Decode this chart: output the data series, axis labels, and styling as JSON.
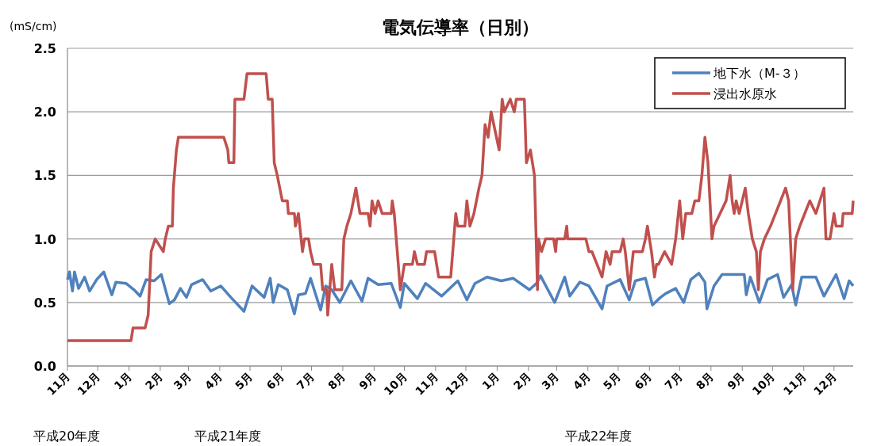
{
  "chart_data": {
    "type": "line",
    "title": "電気伝導率（日別）",
    "ylabel": "(mS/cm)",
    "xlim": [
      "2008-11-01",
      "2010-12-20"
    ],
    "xticks": [
      {
        "value": "2008-11-01",
        "label": "11月"
      },
      {
        "value": "2008-12-01",
        "label": "12月"
      },
      {
        "value": "2009-01-01",
        "label": "1月"
      },
      {
        "value": "2009-02-01",
        "label": "2月"
      },
      {
        "value": "2009-03-01",
        "label": "3月"
      },
      {
        "value": "2009-04-01",
        "label": "4月"
      },
      {
        "value": "2009-05-01",
        "label": "5月"
      },
      {
        "value": "2009-06-01",
        "label": "6月"
      },
      {
        "value": "2009-07-01",
        "label": "7月"
      },
      {
        "value": "2009-08-01",
        "label": "8月"
      },
      {
        "value": "2009-09-01",
        "label": "9月"
      },
      {
        "value": "2009-10-01",
        "label": "10月"
      },
      {
        "value": "2009-11-01",
        "label": "11月"
      },
      {
        "value": "2009-12-01",
        "label": "12月"
      },
      {
        "value": "2010-01-01",
        "label": "1月"
      },
      {
        "value": "2010-02-01",
        "label": "2月"
      },
      {
        "value": "2010-03-01",
        "label": "3月"
      },
      {
        "value": "2010-04-01",
        "label": "4月"
      },
      {
        "value": "2010-05-01",
        "label": "5月"
      },
      {
        "value": "2010-06-01",
        "label": "6月"
      },
      {
        "value": "2010-07-01",
        "label": "7月"
      },
      {
        "value": "2010-08-01",
        "label": "8月"
      },
      {
        "value": "2010-09-01",
        "label": "9月"
      },
      {
        "value": "2010-10-01",
        "label": "10月"
      },
      {
        "value": "2010-11-01",
        "label": "11月"
      },
      {
        "value": "2010-12-01",
        "label": "12月"
      }
    ],
    "ylim": [
      0,
      2.5
    ],
    "yticks": [
      {
        "value": 0,
        "label": "0.0"
      },
      {
        "value": 0.5,
        "label": "0.5"
      },
      {
        "value": 1,
        "label": "1.0"
      },
      {
        "value": 1.5,
        "label": "1.5"
      },
      {
        "value": 2,
        "label": "2.0"
      },
      {
        "value": 2.5,
        "label": "2.5"
      }
    ],
    "grid": "y",
    "legend": "top right",
    "annotations": [
      "平成20年度",
      "平成21年度",
      "平成22年度"
    ],
    "series": [
      {
        "name": "地下水（M-３）",
        "color": "#4f81bd",
        "x": [
          "2008-11-01",
          "2008-11-03",
          "2008-11-06",
          "2008-11-08",
          "2008-11-12",
          "2008-11-18",
          "2008-11-23",
          "2008-11-30",
          "2008-12-07",
          "2008-12-15",
          "2008-12-19",
          "2008-12-29",
          "2009-01-06",
          "2009-01-12",
          "2009-01-18",
          "2009-01-26",
          "2009-02-02",
          "2009-02-10",
          "2009-02-15",
          "2009-02-21",
          "2009-02-27",
          "2009-03-04",
          "2009-03-15",
          "2009-03-23",
          "2009-04-02",
          "2009-04-12",
          "2009-04-25",
          "2009-05-03",
          "2009-05-15",
          "2009-05-21",
          "2009-05-24",
          "2009-05-29",
          "2009-06-07",
          "2009-06-14",
          "2009-06-18",
          "2009-06-25",
          "2009-06-30",
          "2009-07-10",
          "2009-07-15",
          "2009-07-21",
          "2009-07-29",
          "2009-08-09",
          "2009-08-20",
          "2009-08-26",
          "2009-09-05",
          "2009-09-18",
          "2009-09-27",
          "2009-10-01",
          "2009-10-14",
          "2009-10-22",
          "2009-11-07",
          "2009-11-23",
          "2009-12-02",
          "2009-12-10",
          "2009-12-22",
          "2010-01-05",
          "2010-01-17",
          "2010-02-02",
          "2010-02-09",
          "2010-02-13",
          "2010-02-27",
          "2010-03-09",
          "2010-03-14",
          "2010-03-24",
          "2010-04-02",
          "2010-04-15",
          "2010-04-20",
          "2010-05-03",
          "2010-05-12",
          "2010-05-18",
          "2010-05-28",
          "2010-06-04",
          "2010-06-12",
          "2010-06-17",
          "2010-06-27",
          "2010-07-05",
          "2010-07-12",
          "2010-07-20",
          "2010-07-26",
          "2010-07-28",
          "2010-08-04",
          "2010-08-12",
          "2010-09-03",
          "2010-09-05",
          "2010-09-09",
          "2010-09-18",
          "2010-09-26",
          "2010-10-06",
          "2010-10-12",
          "2010-10-20",
          "2010-10-24",
          "2010-10-30",
          "2010-11-13",
          "2010-11-21",
          "2010-12-03",
          "2010-12-11",
          "2010-12-16",
          "2010-12-20"
        ],
        "values": [
          0.68,
          0.74,
          0.59,
          0.74,
          0.61,
          0.7,
          0.59,
          0.68,
          0.74,
          0.56,
          0.66,
          0.65,
          0.6,
          0.55,
          0.68,
          0.67,
          0.72,
          0.49,
          0.52,
          0.61,
          0.54,
          0.64,
          0.68,
          0.59,
          0.63,
          0.54,
          0.43,
          0.63,
          0.54,
          0.69,
          0.5,
          0.64,
          0.6,
          0.41,
          0.56,
          0.57,
          0.69,
          0.44,
          0.63,
          0.6,
          0.5,
          0.67,
          0.51,
          0.69,
          0.64,
          0.65,
          0.46,
          0.65,
          0.53,
          0.65,
          0.55,
          0.67,
          0.52,
          0.65,
          0.7,
          0.67,
          0.69,
          0.6,
          0.65,
          0.71,
          0.5,
          0.7,
          0.55,
          0.66,
          0.63,
          0.45,
          0.63,
          0.68,
          0.52,
          0.67,
          0.69,
          0.48,
          0.54,
          0.57,
          0.61,
          0.5,
          0.68,
          0.73,
          0.66,
          0.45,
          0.63,
          0.72,
          0.72,
          0.56,
          0.7,
          0.5,
          0.68,
          0.72,
          0.54,
          0.64,
          0.48,
          0.7,
          0.7,
          0.55,
          0.72,
          0.53,
          0.67,
          0.63
        ]
      },
      {
        "name": "浸出水原水",
        "color": "#c0504d",
        "x": [
          "2008-11-01",
          "2009-01-03",
          "2009-01-05",
          "2009-01-17",
          "2009-01-20",
          "2009-01-23",
          "2009-01-27",
          "2009-02-04",
          "2009-02-06",
          "2009-02-09",
          "2009-02-13",
          "2009-02-14",
          "2009-02-17",
          "2009-02-19",
          "2009-04-05",
          "2009-04-09",
          "2009-04-10",
          "2009-04-15",
          "2009-04-16",
          "2009-04-25",
          "2009-04-28",
          "2009-05-17",
          "2009-05-19",
          "2009-05-23",
          "2009-05-25",
          "2009-05-28",
          "2009-06-02",
          "2009-06-07",
          "2009-06-08",
          "2009-06-14",
          "2009-06-15",
          "2009-06-18",
          "2009-06-22",
          "2009-06-24",
          "2009-06-28",
          "2009-06-30",
          "2009-07-03",
          "2009-07-10",
          "2009-07-12",
          "2009-07-16",
          "2009-07-17",
          "2009-07-21",
          "2009-07-24",
          "2009-07-31",
          "2009-08-02",
          "2009-08-05",
          "2009-08-09",
          "2009-08-14",
          "2009-08-18",
          "2009-08-26",
          "2009-08-28",
          "2009-08-30",
          "2009-09-02",
          "2009-09-05",
          "2009-09-09",
          "2009-09-18",
          "2009-09-19",
          "2009-09-21",
          "2009-09-27",
          "2009-10-01",
          "2009-10-09",
          "2009-10-11",
          "2009-10-14",
          "2009-10-21",
          "2009-10-23",
          "2009-10-31",
          "2009-11-04",
          "2009-11-16",
          "2009-11-19",
          "2009-11-21",
          "2009-11-23",
          "2009-11-30",
          "2009-12-02",
          "2009-12-05",
          "2009-12-09",
          "2009-12-14",
          "2009-12-17",
          "2009-12-20",
          "2009-12-23",
          "2009-12-26",
          "2010-01-03",
          "2010-01-06",
          "2010-01-08",
          "2010-01-14",
          "2010-01-18",
          "2010-01-20",
          "2010-01-28",
          "2010-01-30",
          "2010-02-03",
          "2010-02-07",
          "2010-02-10",
          "2010-02-11",
          "2010-02-14",
          "2010-02-18",
          "2010-02-26",
          "2010-02-28",
          "2010-03-01",
          "2010-03-09",
          "2010-03-11",
          "2010-03-12",
          "2010-03-30",
          "2010-04-02",
          "2010-04-05",
          "2010-04-10",
          "2010-04-15",
          "2010-04-19",
          "2010-04-23",
          "2010-04-25",
          "2010-05-03",
          "2010-05-06",
          "2010-05-08",
          "2010-05-12",
          "2010-05-16",
          "2010-05-25",
          "2010-05-28",
          "2010-05-30",
          "2010-06-03",
          "2010-06-06",
          "2010-06-08",
          "2010-06-10",
          "2010-06-16",
          "2010-06-23",
          "2010-06-27",
          "2010-07-01",
          "2010-07-04",
          "2010-07-07",
          "2010-07-13",
          "2010-07-16",
          "2010-07-20",
          "2010-07-23",
          "2010-07-26",
          "2010-07-29",
          "2010-08-02",
          "2010-08-04",
          "2010-08-10",
          "2010-08-16",
          "2010-08-20",
          "2010-08-22",
          "2010-08-24",
          "2010-08-26",
          "2010-08-29",
          "2010-09-04",
          "2010-09-07",
          "2010-09-11",
          "2010-09-15",
          "2010-09-17",
          "2010-09-19",
          "2010-09-23",
          "2010-09-29",
          "2010-10-04",
          "2010-10-09",
          "2010-10-14",
          "2010-10-17",
          "2010-10-21",
          "2010-10-24",
          "2010-10-28",
          "2010-11-02",
          "2010-11-07",
          "2010-11-13",
          "2010-11-21",
          "2010-11-23",
          "2010-11-27",
          "2010-11-29",
          "2010-12-01",
          "2010-12-03",
          "2010-12-09",
          "2010-12-10",
          "2010-12-19",
          "2010-12-20"
        ],
        "values": [
          0.2,
          0.2,
          0.3,
          0.3,
          0.4,
          0.9,
          1.0,
          0.9,
          1.0,
          1.1,
          1.1,
          1.4,
          1.7,
          1.8,
          1.8,
          1.7,
          1.6,
          1.6,
          2.1,
          2.1,
          2.3,
          2.3,
          2.1,
          2.1,
          1.6,
          1.5,
          1.3,
          1.3,
          1.2,
          1.2,
          1.1,
          1.2,
          0.9,
          1.0,
          1.0,
          0.9,
          0.8,
          0.8,
          0.6,
          0.6,
          0.4,
          0.8,
          0.6,
          0.6,
          1.0,
          1.1,
          1.2,
          1.4,
          1.2,
          1.2,
          1.1,
          1.3,
          1.2,
          1.3,
          1.2,
          1.2,
          1.3,
          1.2,
          0.6,
          0.8,
          0.8,
          0.9,
          0.8,
          0.8,
          0.9,
          0.9,
          0.7,
          0.7,
          1.0,
          1.2,
          1.1,
          1.1,
          1.3,
          1.1,
          1.2,
          1.4,
          1.5,
          1.9,
          1.8,
          2.0,
          1.7,
          2.1,
          2.0,
          2.1,
          2.0,
          2.1,
          2.1,
          1.6,
          1.7,
          1.5,
          0.6,
          1.0,
          0.9,
          1.0,
          1.0,
          0.9,
          1.0,
          1.0,
          1.1,
          1.0,
          1.0,
          0.9,
          0.9,
          0.8,
          0.7,
          0.9,
          0.8,
          0.9,
          0.9,
          1.0,
          0.9,
          0.6,
          0.9,
          0.9,
          1.0,
          1.1,
          0.9,
          0.7,
          0.8,
          0.8,
          0.9,
          0.8,
          1.0,
          1.3,
          1.0,
          1.2,
          1.2,
          1.3,
          1.3,
          1.5,
          1.8,
          1.6,
          1.0,
          1.1,
          1.2,
          1.3,
          1.5,
          1.3,
          1.2,
          1.3,
          1.2,
          1.4,
          1.2,
          1.0,
          0.9,
          0.6,
          0.9,
          1.0,
          1.1,
          1.2,
          1.3,
          1.4,
          1.3,
          0.6,
          1.0,
          1.1,
          1.2,
          1.3,
          1.2,
          1.4,
          1.0,
          1.0,
          1.1,
          1.2,
          1.1,
          1.1,
          1.2,
          1.2,
          1.3
        ]
      }
    ]
  }
}
